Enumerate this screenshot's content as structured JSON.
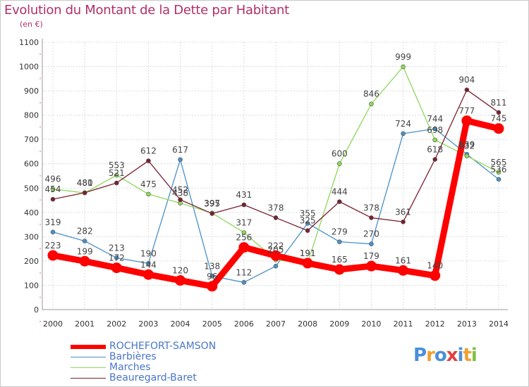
{
  "header": {
    "title": "Evolution du Montant de la Dette par Habitant",
    "unit": "(en €)"
  },
  "logo": {
    "letters": [
      "P",
      "r",
      "o",
      "x",
      "i",
      "t",
      "i"
    ],
    "colors": [
      "#4a90d9",
      "#f0a030",
      "#4a90d9",
      "#e04040",
      "#4a90d9",
      "#f0a030",
      "#7cc040"
    ]
  },
  "chart_data": {
    "type": "line",
    "x": [
      "2000",
      "2001",
      "2002",
      "2003",
      "2004",
      "2005",
      "2006",
      "2007",
      "2008",
      "2009",
      "2010",
      "2011",
      "2012",
      "2013",
      "2014"
    ],
    "y_ticks": [
      "0",
      "100",
      "200",
      "300",
      "400",
      "500",
      "600",
      "700",
      "800",
      "900",
      "1000",
      "1100"
    ],
    "ylim": [
      0,
      1100
    ],
    "grid": true,
    "legend_position": "bottom-left",
    "series": [
      {
        "name": "Barbières",
        "color": "#4a90c8",
        "values": [
          319,
          282,
          213,
          190,
          617,
          138,
          112,
          179,
          355,
          279,
          270,
          724,
          744,
          639,
          536
        ],
        "labels": [
          "319",
          "282",
          "213",
          "190",
          "617",
          "138",
          "112",
          "",
          "355",
          "279",
          "270",
          "724",
          "744",
          "639",
          "536"
        ]
      },
      {
        "name": "Marches",
        "color": "#8ed85a",
        "values": [
          496,
          480,
          553,
          475,
          438,
          397,
          317,
          205,
          191,
          600,
          846,
          999,
          698,
          632,
          565
        ],
        "labels": [
          "496",
          "480",
          "553",
          "475",
          "438",
          "397",
          "317",
          "205",
          "191",
          "600",
          "846",
          "999",
          "698",
          "632",
          "565"
        ]
      },
      {
        "name": "Beauregard-Baret",
        "color": "#7a2030",
        "values": [
          454,
          481,
          521,
          612,
          452,
          395,
          431,
          378,
          325,
          444,
          378,
          361,
          618,
          904,
          811
        ],
        "labels": [
          "454",
          "481",
          "521",
          "612",
          "452",
          "395",
          "431",
          "378",
          "325",
          "444",
          "378",
          "361",
          "618",
          "904",
          "811"
        ]
      },
      {
        "name": "ROCHEFORT-SAMSON",
        "color": "#ff0000",
        "values": [
          223,
          199,
          172,
          144,
          120,
          96,
          256,
          222,
          191,
          165,
          179,
          161,
          140,
          777,
          745
        ],
        "labels": [
          "223",
          "199",
          "172",
          "144",
          "120",
          "96",
          "256",
          "222",
          "191",
          "165",
          "179",
          "161",
          "140",
          "777",
          "745"
        ]
      }
    ]
  }
}
